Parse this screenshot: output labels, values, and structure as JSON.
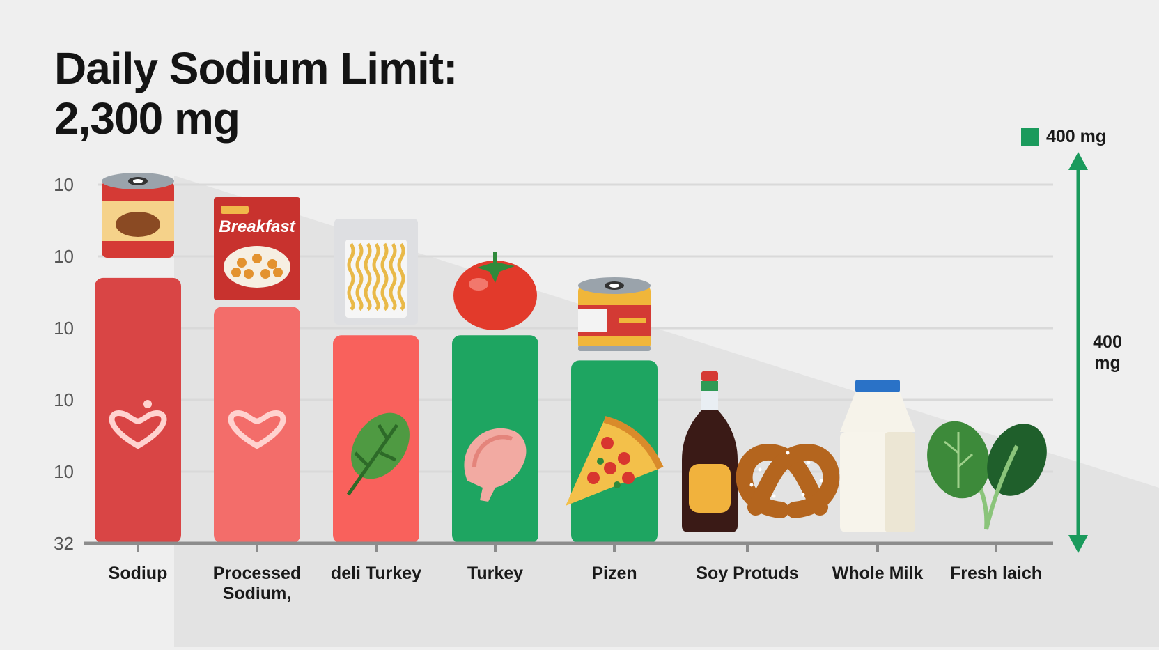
{
  "header": {
    "title_line1": "Daily Sodium Limit:",
    "title_line2": "2,300 mg"
  },
  "legend": {
    "label": "400 mg",
    "color": "#1a9a5c"
  },
  "range_marker": {
    "label_line1": "400",
    "label_line2": "mg",
    "color": "#1a9a5c"
  },
  "chart_data": {
    "type": "bar",
    "title": "Daily Sodium Limit: 2,300 mg",
    "y_tick_labels": [
      "32",
      "10",
      "10",
      "10",
      "10",
      "10"
    ],
    "grid": true,
    "legend_position": "top-right",
    "categories": [
      [
        "Sodiup"
      ],
      [
        "Processed",
        "Sodium,"
      ],
      [
        "deli Turkey"
      ],
      [
        "Turkey"
      ],
      [
        "Pizen"
      ],
      [
        "Soy Protuds"
      ],
      [
        "Whole Milk"
      ],
      [
        "Fresh laich"
      ]
    ],
    "values": [
      3.7,
      3.3,
      2.9,
      2.9,
      2.55,
      0,
      0,
      0
    ],
    "value_scale_max": 5,
    "bar_colors": [
      "#d94545",
      "#f36d6a",
      "#f9615c",
      "#1ea561",
      "#1ea561",
      null,
      null,
      null
    ],
    "icons": [
      "canned-soup-icon",
      "breakfast-cereal-box-icon",
      "noodle-pack-icon",
      "tomato-icon",
      "canned-food-icon",
      "soy-sauce-and-pretzel-icon",
      "milk-carton-icon",
      "spinach-icon"
    ],
    "bar_icons": [
      "heart-outline-icon",
      "heart-outline-icon",
      "leaf-icon",
      "ham-icon",
      "pizza-slice-icon",
      null,
      null,
      null
    ]
  }
}
